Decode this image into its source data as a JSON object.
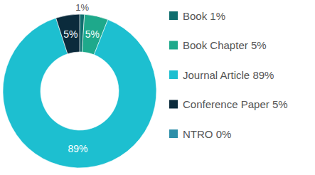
{
  "chart_data": {
    "type": "donut",
    "categories": [
      "Book 1%",
      "Book Chapter 5%",
      "Journal Article 89%",
      "Conference Paper 5%",
      "NTRO 0%"
    ],
    "values": [
      1,
      5,
      89,
      5,
      0
    ],
    "value_labels": [
      "1%",
      "5%",
      "89%",
      "5%",
      null
    ],
    "colors": [
      "#0f6e6e",
      "#1ea98b",
      "#1dbfd0",
      "#0b2b3c",
      "#2e8fa9"
    ],
    "data_labels": true,
    "legend": "right"
  }
}
